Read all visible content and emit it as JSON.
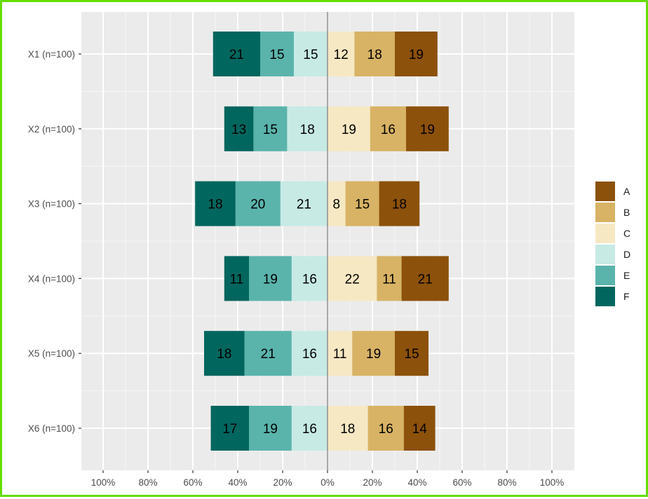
{
  "chart_data": {
    "type": "bar",
    "orientation": "horizontal",
    "stacking": "diverging",
    "title": "",
    "xlabel": "",
    "ylabel": "",
    "xlim": [
      -100,
      100
    ],
    "x_ticks": [
      -100,
      -80,
      -60,
      -40,
      -20,
      0,
      20,
      40,
      60,
      80,
      100
    ],
    "x_tick_labels": [
      "100%",
      "80%",
      "60%",
      "40%",
      "20%",
      "0%",
      "20%",
      "40%",
      "60%",
      "80%",
      "100%"
    ],
    "categories": [
      "X1 (n=100)",
      "X2 (n=100)",
      "X3 (n=100)",
      "X4 (n=100)",
      "X5 (n=100)",
      "X6 (n=100)"
    ],
    "negative_order": [
      "D",
      "E",
      "F"
    ],
    "positive_order": [
      "C",
      "B",
      "A"
    ],
    "series": [
      {
        "name": "A",
        "color": "#8c510a",
        "values": [
          19,
          19,
          18,
          21,
          15,
          14
        ]
      },
      {
        "name": "B",
        "color": "#d8b365",
        "values": [
          18,
          16,
          15,
          11,
          19,
          16
        ]
      },
      {
        "name": "C",
        "color": "#f6e8c3",
        "values": [
          12,
          19,
          8,
          22,
          11,
          18
        ]
      },
      {
        "name": "D",
        "color": "#c7eae5",
        "values": [
          15,
          18,
          21,
          16,
          16,
          16
        ]
      },
      {
        "name": "E",
        "color": "#5ab4ac",
        "values": [
          15,
          15,
          20,
          19,
          21,
          19
        ]
      },
      {
        "name": "F",
        "color": "#01665e",
        "values": [
          21,
          13,
          18,
          11,
          18,
          17
        ]
      }
    ],
    "legend": {
      "position": "right",
      "entries": [
        "A",
        "B",
        "C",
        "D",
        "E",
        "F"
      ]
    },
    "grid": true,
    "zero_line": true
  }
}
